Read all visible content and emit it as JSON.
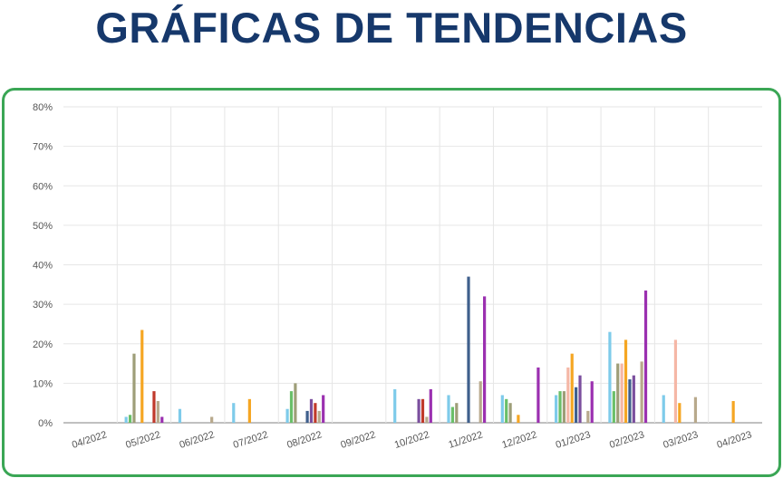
{
  "title": "GRÁFICAS DE TENDENCIAS",
  "colors": {
    "title": "#16386b",
    "frame": "#3aa655",
    "grid": "#e6e6e6",
    "tick_label": "#555555"
  },
  "chart_data": {
    "type": "bar",
    "title": "",
    "xlabel": "",
    "ylabel": "",
    "ylim": [
      0,
      80
    ],
    "y_ticks": [
      "0%",
      "10%",
      "20%",
      "30%",
      "40%",
      "50%",
      "60%",
      "70%",
      "80%"
    ],
    "grid": true,
    "legend": "none",
    "categories": [
      "04/2022",
      "05/2022",
      "06/2022",
      "07/2022",
      "08/2022",
      "09/2022",
      "10/2022",
      "11/2022",
      "12/2022",
      "01/2023",
      "02/2023",
      "03/2023",
      "04/2023"
    ],
    "series": [
      {
        "color": "#7ecbea",
        "values": [
          0,
          1.5,
          3.5,
          5,
          3.5,
          0,
          8.5,
          7,
          7,
          7,
          23,
          7,
          0
        ]
      },
      {
        "color": "#6abf69",
        "values": [
          0,
          2,
          0,
          0,
          8,
          0,
          0,
          4,
          6,
          8,
          8,
          0,
          0
        ]
      },
      {
        "color": "#9e9e78",
        "values": [
          0,
          17.5,
          0,
          0,
          10,
          0,
          0,
          5,
          5,
          8,
          15,
          0,
          0
        ]
      },
      {
        "color": "#f5b7a6",
        "values": [
          0,
          0,
          0,
          0,
          0,
          0,
          0,
          0,
          0,
          14,
          15,
          21,
          0
        ]
      },
      {
        "color": "#f5a623",
        "values": [
          0,
          23.5,
          0,
          6,
          0,
          0,
          0,
          0,
          2,
          17.5,
          21,
          5,
          5.5
        ]
      },
      {
        "color": "#3f5f8c",
        "values": [
          0,
          0,
          0,
          0,
          3,
          0,
          0,
          37,
          0,
          9,
          11,
          0,
          0
        ]
      },
      {
        "color": "#7b4f9e",
        "values": [
          0,
          0,
          0,
          0,
          6,
          0,
          6,
          0,
          0,
          12,
          12,
          0,
          0
        ]
      },
      {
        "color": "#c0392b",
        "values": [
          0,
          8,
          0,
          0,
          5,
          0,
          6,
          0,
          0,
          0,
          0,
          0,
          0
        ]
      },
      {
        "color": "#b8a98c",
        "values": [
          0,
          5.5,
          1.5,
          0,
          3,
          0,
          1.5,
          10.5,
          0,
          3,
          15.5,
          6.5,
          0
        ]
      },
      {
        "color": "#9b30b0",
        "values": [
          0,
          1.5,
          0,
          0,
          7,
          0,
          8.5,
          32,
          14,
          10.5,
          33.5,
          0,
          0
        ]
      }
    ]
  }
}
